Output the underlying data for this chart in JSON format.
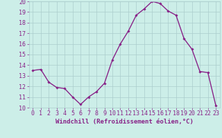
{
  "x": [
    0,
    1,
    2,
    3,
    4,
    5,
    6,
    7,
    8,
    9,
    10,
    11,
    12,
    13,
    14,
    15,
    16,
    17,
    18,
    19,
    20,
    21,
    22,
    23
  ],
  "y": [
    13.5,
    13.6,
    12.4,
    11.9,
    11.8,
    11.0,
    10.3,
    11.0,
    11.5,
    12.3,
    14.5,
    16.0,
    17.2,
    18.7,
    19.3,
    20.0,
    19.8,
    19.1,
    18.7,
    16.5,
    15.5,
    13.4,
    13.3,
    10.2
  ],
  "line_color": "#882288",
  "marker": "D",
  "marker_size": 1.8,
  "linewidth": 1.0,
  "xlabel": "Windchill (Refroidissement éolien,°C)",
  "xlim": [
    -0.5,
    23.5
  ],
  "ylim": [
    10,
    20
  ],
  "yticks": [
    10,
    11,
    12,
    13,
    14,
    15,
    16,
    17,
    18,
    19,
    20
  ],
  "xticks": [
    0,
    1,
    2,
    3,
    4,
    5,
    6,
    7,
    8,
    9,
    10,
    11,
    12,
    13,
    14,
    15,
    16,
    17,
    18,
    19,
    20,
    21,
    22,
    23
  ],
  "background_color": "#cceee8",
  "grid_color": "#aacccc",
  "line_label_color": "#882288",
  "xlabel_fontsize": 6.5,
  "tick_fontsize": 6.0
}
